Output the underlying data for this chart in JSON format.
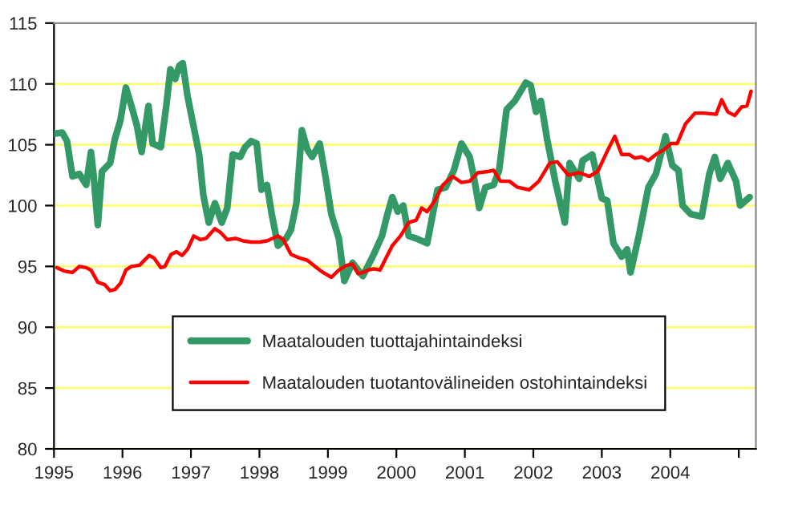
{
  "chart_data": {
    "type": "line",
    "xlim": [
      1995,
      2005.25
    ],
    "ylim": [
      80,
      115
    ],
    "xticks": [
      1995,
      1996,
      1997,
      1998,
      1999,
      2000,
      2001,
      2002,
      2003,
      2004,
      {
        "value": 2005,
        "label": null
      }
    ],
    "yticks": [
      80,
      85,
      90,
      95,
      100,
      105,
      110,
      115
    ],
    "grid": "y",
    "legend": "bottom",
    "marker": "none",
    "line_style": "solid",
    "series": [
      {
        "name": "Maatalouden tuottajahintaindeksi",
        "color": "#339966",
        "x": [
          1995.0,
          1995.12,
          1995.19,
          1995.27,
          1995.37,
          1995.47,
          1995.54,
          1995.58,
          1995.64,
          1995.7,
          1995.82,
          1995.89,
          1995.97,
          1996.05,
          1996.13,
          1996.21,
          1996.28,
          1996.38,
          1996.44,
          1996.56,
          1996.64,
          1996.7,
          1996.77,
          1996.83,
          1996.88,
          1996.95,
          1997.06,
          1997.12,
          1997.18,
          1997.26,
          1997.35,
          1997.45,
          1997.53,
          1997.61,
          1997.72,
          1997.79,
          1997.88,
          1997.96,
          1998.03,
          1998.11,
          1998.18,
          1998.27,
          1998.39,
          1998.46,
          1998.54,
          1998.62,
          1998.7,
          1998.77,
          1998.88,
          1998.97,
          1999.05,
          1999.16,
          1999.24,
          1999.36,
          1999.44,
          1999.51,
          1999.59,
          1999.67,
          1999.79,
          1999.86,
          1999.94,
          2000.02,
          2000.1,
          2000.18,
          2000.29,
          2000.45,
          2000.6,
          2000.72,
          2000.84,
          2000.95,
          2001.07,
          2001.13,
          2001.21,
          2001.3,
          2001.42,
          2001.5,
          2001.61,
          2001.73,
          2001.89,
          2001.96,
          2002.04,
          2002.11,
          2002.2,
          2002.32,
          2002.46,
          2002.53,
          2002.67,
          2002.72,
          2002.86,
          2003.0,
          2003.08,
          2003.17,
          2003.29,
          2003.37,
          2003.42,
          2003.54,
          2003.68,
          2003.79,
          2003.93,
          2004.03,
          2004.12,
          2004.18,
          2004.3,
          2004.46,
          2004.57,
          2004.65,
          2004.73,
          2004.84,
          2004.96,
          2005.02,
          2005.16
        ],
        "values": [
          105.9,
          106.0,
          105.3,
          102.4,
          102.6,
          101.7,
          104.4,
          102.4,
          98.4,
          102.8,
          103.5,
          105.5,
          107.0,
          109.7,
          108.2,
          106.6,
          104.4,
          108.2,
          105.1,
          104.8,
          108.2,
          111.2,
          110.4,
          111.5,
          111.7,
          109.0,
          105.9,
          104.2,
          100.9,
          98.6,
          100.2,
          98.6,
          99.8,
          104.2,
          104.0,
          104.8,
          105.3,
          105.1,
          101.3,
          101.7,
          99.3,
          96.7,
          97.3,
          98.0,
          100.2,
          106.2,
          104.6,
          104.0,
          105.1,
          102.2,
          99.3,
          97.3,
          93.8,
          95.3,
          94.7,
          94.2,
          95.1,
          96.0,
          97.5,
          99.1,
          100.7,
          99.5,
          100.0,
          97.5,
          97.3,
          96.9,
          101.3,
          101.5,
          102.9,
          105.1,
          104.0,
          102.4,
          99.8,
          101.5,
          101.7,
          102.9,
          107.9,
          108.6,
          110.1,
          109.9,
          107.7,
          108.6,
          105.5,
          102.0,
          98.6,
          103.5,
          102.2,
          103.7,
          104.2,
          100.6,
          100.4,
          96.9,
          95.8,
          96.4,
          94.5,
          97.5,
          101.5,
          102.6,
          105.7,
          103.3,
          102.9,
          100.0,
          99.3,
          99.1,
          102.6,
          104.0,
          102.2,
          103.5,
          102.0,
          100.0,
          100.7
        ]
      },
      {
        "name": "Maatalouden tuotantovälineiden ostohintaindeksi",
        "color": "#ff0000",
        "x": [
          1995.04,
          1995.16,
          1995.27,
          1995.37,
          1995.47,
          1995.54,
          1995.64,
          1995.74,
          1995.82,
          1995.89,
          1995.97,
          1996.05,
          1996.13,
          1996.25,
          1996.39,
          1996.46,
          1996.56,
          1996.62,
          1996.71,
          1996.79,
          1996.87,
          1996.95,
          1997.04,
          1997.14,
          1997.22,
          1997.35,
          1997.43,
          1997.53,
          1997.65,
          1997.76,
          1997.88,
          1998.0,
          1998.11,
          1998.19,
          1998.27,
          1998.35,
          1998.46,
          1998.58,
          1998.7,
          1998.81,
          1998.93,
          1999.05,
          1999.16,
          1999.28,
          1999.36,
          1999.44,
          1999.51,
          1999.59,
          1999.67,
          1999.76,
          1999.84,
          1999.94,
          2000.06,
          2000.18,
          2000.29,
          2000.37,
          2000.45,
          2000.56,
          2000.68,
          2000.82,
          2000.95,
          2001.07,
          2001.19,
          2001.34,
          2001.42,
          2001.52,
          2001.65,
          2001.77,
          2001.94,
          2002.08,
          2002.24,
          2002.35,
          2002.51,
          2002.67,
          2002.82,
          2002.94,
          2003.09,
          2003.19,
          2003.29,
          2003.4,
          2003.48,
          2003.58,
          2003.68,
          2003.79,
          2003.91,
          2004.01,
          2004.1,
          2004.22,
          2004.36,
          2004.49,
          2004.67,
          2004.75,
          2004.84,
          2004.94,
          2005.04,
          2005.12,
          2005.18
        ],
        "values": [
          94.9,
          94.6,
          94.5,
          95.0,
          94.9,
          94.7,
          93.7,
          93.5,
          93.0,
          93.1,
          93.6,
          94.7,
          95.0,
          95.1,
          95.9,
          95.7,
          94.9,
          95.0,
          96.0,
          96.2,
          95.9,
          96.4,
          97.5,
          97.2,
          97.3,
          98.1,
          97.8,
          97.2,
          97.3,
          97.1,
          97.0,
          97.0,
          97.1,
          97.3,
          97.5,
          97.2,
          96.0,
          95.7,
          95.5,
          95.0,
          94.5,
          94.1,
          94.7,
          95.1,
          95.2,
          94.4,
          94.5,
          94.7,
          94.8,
          94.7,
          95.6,
          96.7,
          97.5,
          98.6,
          98.8,
          99.8,
          99.5,
          100.4,
          101.7,
          102.4,
          101.9,
          102.0,
          102.7,
          102.8,
          102.9,
          102.0,
          102.0,
          101.5,
          101.3,
          102.0,
          103.5,
          103.6,
          102.5,
          102.7,
          102.4,
          102.8,
          104.6,
          105.7,
          104.2,
          104.2,
          103.9,
          104.0,
          103.7,
          104.2,
          104.6,
          105.1,
          105.1,
          106.7,
          107.6,
          107.6,
          107.5,
          108.7,
          107.7,
          107.4,
          108.1,
          108.2,
          109.4
        ]
      }
    ]
  }
}
